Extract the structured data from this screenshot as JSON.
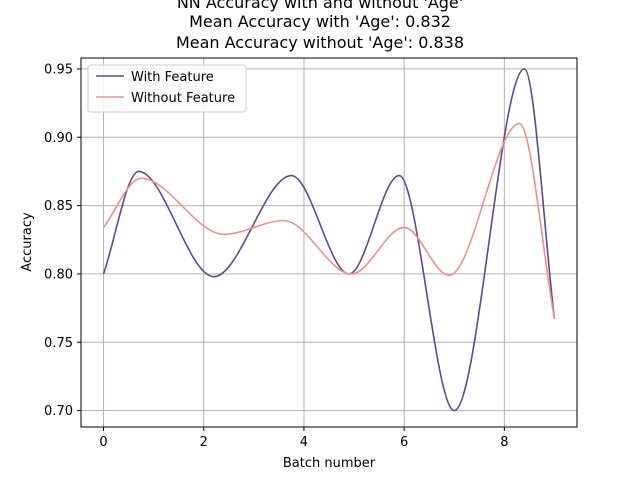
{
  "chart_data": {
    "type": "line",
    "title_lines": [
      "NN Accuracy with and without 'Age'",
      "Mean Accuracy with 'Age': 0.832",
      "Mean Accuracy without 'Age': 0.838"
    ],
    "xlabel": "Batch number",
    "ylabel": "Accuracy",
    "xlim": [
      -0.45,
      9.45
    ],
    "ylim": [
      0.688,
      0.958
    ],
    "xticks": [
      0,
      2,
      4,
      6,
      8
    ],
    "xtick_labels": [
      "0",
      "2",
      "4",
      "6",
      "8"
    ],
    "yticks": [
      0.7,
      0.75,
      0.8,
      0.85,
      0.9,
      0.95
    ],
    "ytick_labels": [
      "0.70",
      "0.75",
      "0.80",
      "0.85",
      "0.90",
      "0.95"
    ],
    "grid": true,
    "legend_position": "upper-left",
    "series": [
      {
        "name": "With Feature",
        "color": "#5b4a8b",
        "x": [
          0,
          0.7,
          2.2,
          3.75,
          4.9,
          5.9,
          7.0,
          8.4,
          9.0
        ],
        "y": [
          0.8,
          0.875,
          0.798,
          0.872,
          0.8,
          0.872,
          0.7,
          0.95,
          0.767
        ]
      },
      {
        "name": "Without Feature",
        "color": "#e8928a",
        "x": [
          0,
          0.75,
          2.4,
          3.6,
          4.95,
          6.0,
          6.9,
          8.3,
          9.0
        ],
        "y": [
          0.834,
          0.87,
          0.829,
          0.839,
          0.8,
          0.834,
          0.799,
          0.91,
          0.767
        ]
      }
    ]
  }
}
